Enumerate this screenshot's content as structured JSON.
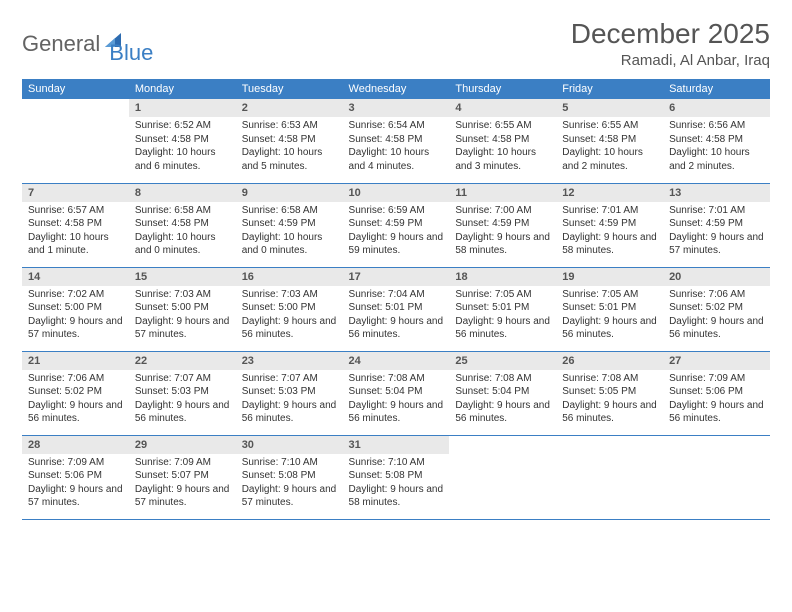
{
  "brand": {
    "word1": "General",
    "word2": "Blue"
  },
  "title": "December 2025",
  "location": "Ramadi, Al Anbar, Iraq",
  "colors": {
    "header_bg": "#3b7fc4",
    "header_text": "#ffffff",
    "daynum_bg": "#e9e9e9",
    "row_border": "#3b7fc4",
    "title_color": "#555555",
    "body_text": "#333333"
  },
  "day_headers": [
    "Sunday",
    "Monday",
    "Tuesday",
    "Wednesday",
    "Thursday",
    "Friday",
    "Saturday"
  ],
  "weeks": [
    [
      {
        "n": "",
        "sr": "",
        "ss": "",
        "dl": "",
        "empty": true
      },
      {
        "n": "1",
        "sr": "Sunrise: 6:52 AM",
        "ss": "Sunset: 4:58 PM",
        "dl": "Daylight: 10 hours and 6 minutes."
      },
      {
        "n": "2",
        "sr": "Sunrise: 6:53 AM",
        "ss": "Sunset: 4:58 PM",
        "dl": "Daylight: 10 hours and 5 minutes."
      },
      {
        "n": "3",
        "sr": "Sunrise: 6:54 AM",
        "ss": "Sunset: 4:58 PM",
        "dl": "Daylight: 10 hours and 4 minutes."
      },
      {
        "n": "4",
        "sr": "Sunrise: 6:55 AM",
        "ss": "Sunset: 4:58 PM",
        "dl": "Daylight: 10 hours and 3 minutes."
      },
      {
        "n": "5",
        "sr": "Sunrise: 6:55 AM",
        "ss": "Sunset: 4:58 PM",
        "dl": "Daylight: 10 hours and 2 minutes."
      },
      {
        "n": "6",
        "sr": "Sunrise: 6:56 AM",
        "ss": "Sunset: 4:58 PM",
        "dl": "Daylight: 10 hours and 2 minutes."
      }
    ],
    [
      {
        "n": "7",
        "sr": "Sunrise: 6:57 AM",
        "ss": "Sunset: 4:58 PM",
        "dl": "Daylight: 10 hours and 1 minute."
      },
      {
        "n": "8",
        "sr": "Sunrise: 6:58 AM",
        "ss": "Sunset: 4:58 PM",
        "dl": "Daylight: 10 hours and 0 minutes."
      },
      {
        "n": "9",
        "sr": "Sunrise: 6:58 AM",
        "ss": "Sunset: 4:59 PM",
        "dl": "Daylight: 10 hours and 0 minutes."
      },
      {
        "n": "10",
        "sr": "Sunrise: 6:59 AM",
        "ss": "Sunset: 4:59 PM",
        "dl": "Daylight: 9 hours and 59 minutes."
      },
      {
        "n": "11",
        "sr": "Sunrise: 7:00 AM",
        "ss": "Sunset: 4:59 PM",
        "dl": "Daylight: 9 hours and 58 minutes."
      },
      {
        "n": "12",
        "sr": "Sunrise: 7:01 AM",
        "ss": "Sunset: 4:59 PM",
        "dl": "Daylight: 9 hours and 58 minutes."
      },
      {
        "n": "13",
        "sr": "Sunrise: 7:01 AM",
        "ss": "Sunset: 4:59 PM",
        "dl": "Daylight: 9 hours and 57 minutes."
      }
    ],
    [
      {
        "n": "14",
        "sr": "Sunrise: 7:02 AM",
        "ss": "Sunset: 5:00 PM",
        "dl": "Daylight: 9 hours and 57 minutes."
      },
      {
        "n": "15",
        "sr": "Sunrise: 7:03 AM",
        "ss": "Sunset: 5:00 PM",
        "dl": "Daylight: 9 hours and 57 minutes."
      },
      {
        "n": "16",
        "sr": "Sunrise: 7:03 AM",
        "ss": "Sunset: 5:00 PM",
        "dl": "Daylight: 9 hours and 56 minutes."
      },
      {
        "n": "17",
        "sr": "Sunrise: 7:04 AM",
        "ss": "Sunset: 5:01 PM",
        "dl": "Daylight: 9 hours and 56 minutes."
      },
      {
        "n": "18",
        "sr": "Sunrise: 7:05 AM",
        "ss": "Sunset: 5:01 PM",
        "dl": "Daylight: 9 hours and 56 minutes."
      },
      {
        "n": "19",
        "sr": "Sunrise: 7:05 AM",
        "ss": "Sunset: 5:01 PM",
        "dl": "Daylight: 9 hours and 56 minutes."
      },
      {
        "n": "20",
        "sr": "Sunrise: 7:06 AM",
        "ss": "Sunset: 5:02 PM",
        "dl": "Daylight: 9 hours and 56 minutes."
      }
    ],
    [
      {
        "n": "21",
        "sr": "Sunrise: 7:06 AM",
        "ss": "Sunset: 5:02 PM",
        "dl": "Daylight: 9 hours and 56 minutes."
      },
      {
        "n": "22",
        "sr": "Sunrise: 7:07 AM",
        "ss": "Sunset: 5:03 PM",
        "dl": "Daylight: 9 hours and 56 minutes."
      },
      {
        "n": "23",
        "sr": "Sunrise: 7:07 AM",
        "ss": "Sunset: 5:03 PM",
        "dl": "Daylight: 9 hours and 56 minutes."
      },
      {
        "n": "24",
        "sr": "Sunrise: 7:08 AM",
        "ss": "Sunset: 5:04 PM",
        "dl": "Daylight: 9 hours and 56 minutes."
      },
      {
        "n": "25",
        "sr": "Sunrise: 7:08 AM",
        "ss": "Sunset: 5:04 PM",
        "dl": "Daylight: 9 hours and 56 minutes."
      },
      {
        "n": "26",
        "sr": "Sunrise: 7:08 AM",
        "ss": "Sunset: 5:05 PM",
        "dl": "Daylight: 9 hours and 56 minutes."
      },
      {
        "n": "27",
        "sr": "Sunrise: 7:09 AM",
        "ss": "Sunset: 5:06 PM",
        "dl": "Daylight: 9 hours and 56 minutes."
      }
    ],
    [
      {
        "n": "28",
        "sr": "Sunrise: 7:09 AM",
        "ss": "Sunset: 5:06 PM",
        "dl": "Daylight: 9 hours and 57 minutes."
      },
      {
        "n": "29",
        "sr": "Sunrise: 7:09 AM",
        "ss": "Sunset: 5:07 PM",
        "dl": "Daylight: 9 hours and 57 minutes."
      },
      {
        "n": "30",
        "sr": "Sunrise: 7:10 AM",
        "ss": "Sunset: 5:08 PM",
        "dl": "Daylight: 9 hours and 57 minutes."
      },
      {
        "n": "31",
        "sr": "Sunrise: 7:10 AM",
        "ss": "Sunset: 5:08 PM",
        "dl": "Daylight: 9 hours and 58 minutes."
      },
      {
        "n": "",
        "sr": "",
        "ss": "",
        "dl": "",
        "empty": true
      },
      {
        "n": "",
        "sr": "",
        "ss": "",
        "dl": "",
        "empty": true
      },
      {
        "n": "",
        "sr": "",
        "ss": "",
        "dl": "",
        "empty": true
      }
    ]
  ]
}
